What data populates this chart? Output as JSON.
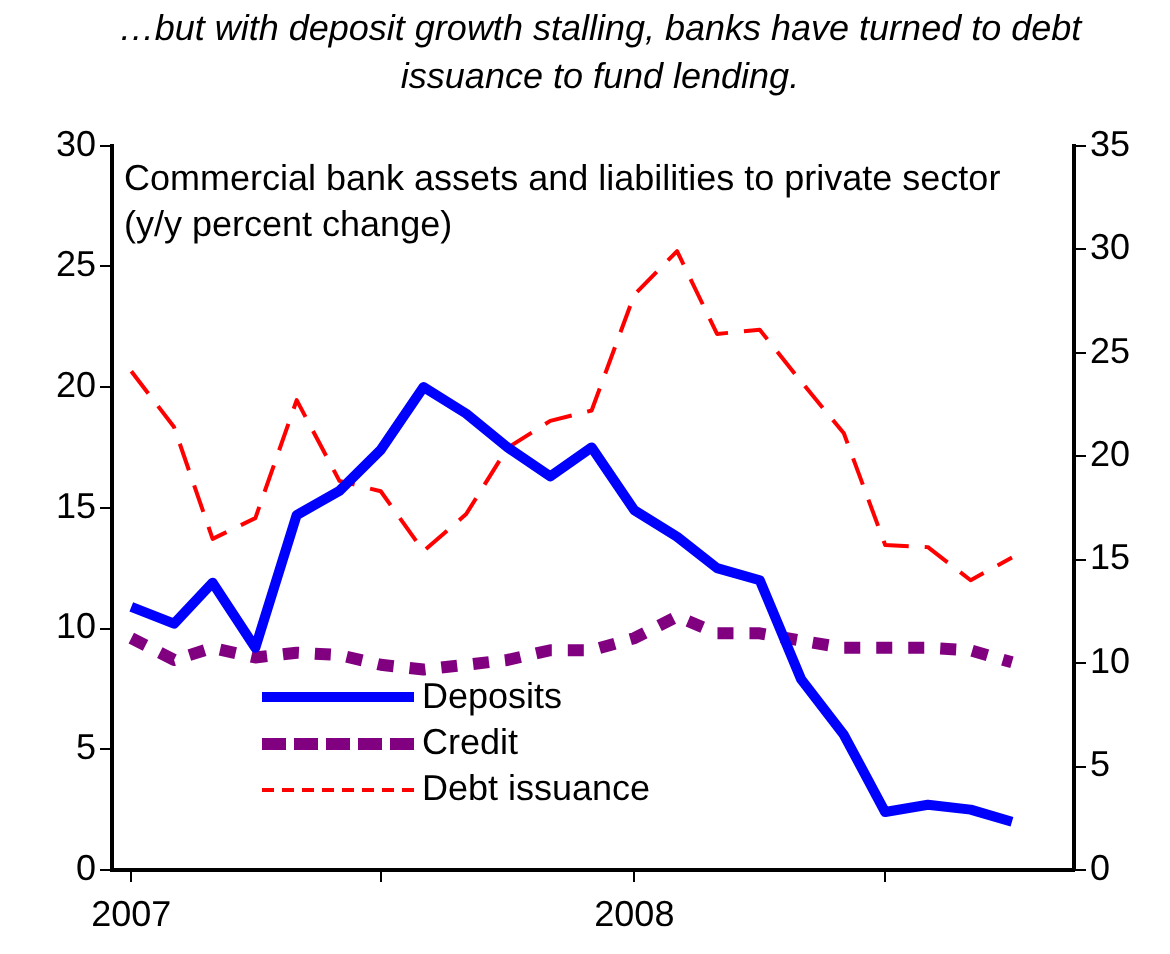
{
  "chart_data": {
    "type": "line",
    "title": "…but with deposit growth stalling, banks have turned to debt issuance to fund lending.",
    "annotations": [
      "Commercial bank assets and liabilities to private sector (y/y percent change)"
    ],
    "x": [
      "2007-01",
      "2007-02",
      "2007-03",
      "2007-04",
      "2007-05",
      "2007-06",
      "2007-07",
      "2007-08",
      "2007-09",
      "2007-10",
      "2007-11",
      "2007-12",
      "2008-01",
      "2008-02",
      "2008-03",
      "2008-04",
      "2008-05",
      "2008-06",
      "2008-07",
      "2008-08",
      "2008-09",
      "2008-10"
    ],
    "xlim": [
      "2006-12-18",
      "2008-11-15"
    ],
    "xticks": [
      {
        "value": "2007-01",
        "label": "2007"
      },
      {
        "value": "2007-07",
        "label": null
      },
      {
        "value": "2008-01",
        "label": "2008"
      },
      {
        "value": "2008-07",
        "label": null
      }
    ],
    "ylim": [
      0,
      30
    ],
    "yticks": [
      0,
      5,
      10,
      15,
      20,
      25,
      30
    ],
    "y2lim": [
      0,
      35
    ],
    "y2ticks": [
      0,
      5,
      10,
      15,
      20,
      25,
      30,
      35
    ],
    "series": [
      {
        "name": "Deposits",
        "color": "#0000ff",
        "line_style": "solid",
        "values": [
          10.9,
          10.2,
          11.9,
          9.2,
          14.7,
          15.7,
          17.4,
          20.0,
          18.9,
          17.5,
          16.3,
          17.5,
          14.9,
          13.8,
          12.5,
          12.0,
          7.9,
          5.6,
          2.4,
          2.7,
          2.5,
          2.0
        ]
      },
      {
        "name": "Credit",
        "color": "#800080",
        "line_style": "dashed",
        "values": [
          9.6,
          8.7,
          9.2,
          8.8,
          9.0,
          8.9,
          8.5,
          8.3,
          8.5,
          8.7,
          9.1,
          9.1,
          9.6,
          10.5,
          9.8,
          9.8,
          9.5,
          9.2,
          9.2,
          9.2,
          9.1,
          8.6
        ]
      },
      {
        "name": "Debt issuance",
        "color": "#ff0000",
        "line_style": "dashed",
        "axis": "y2",
        "values": [
          24.1,
          21.4,
          16.0,
          17.0,
          22.7,
          18.8,
          18.3,
          15.4,
          17.2,
          20.4,
          21.7,
          22.2,
          27.8,
          29.9,
          25.9,
          26.1,
          23.6,
          21.1,
          15.7,
          15.6,
          14.0,
          15.1
        ]
      }
    ],
    "grid": false,
    "legend": "bottom left",
    "marker": "none"
  }
}
